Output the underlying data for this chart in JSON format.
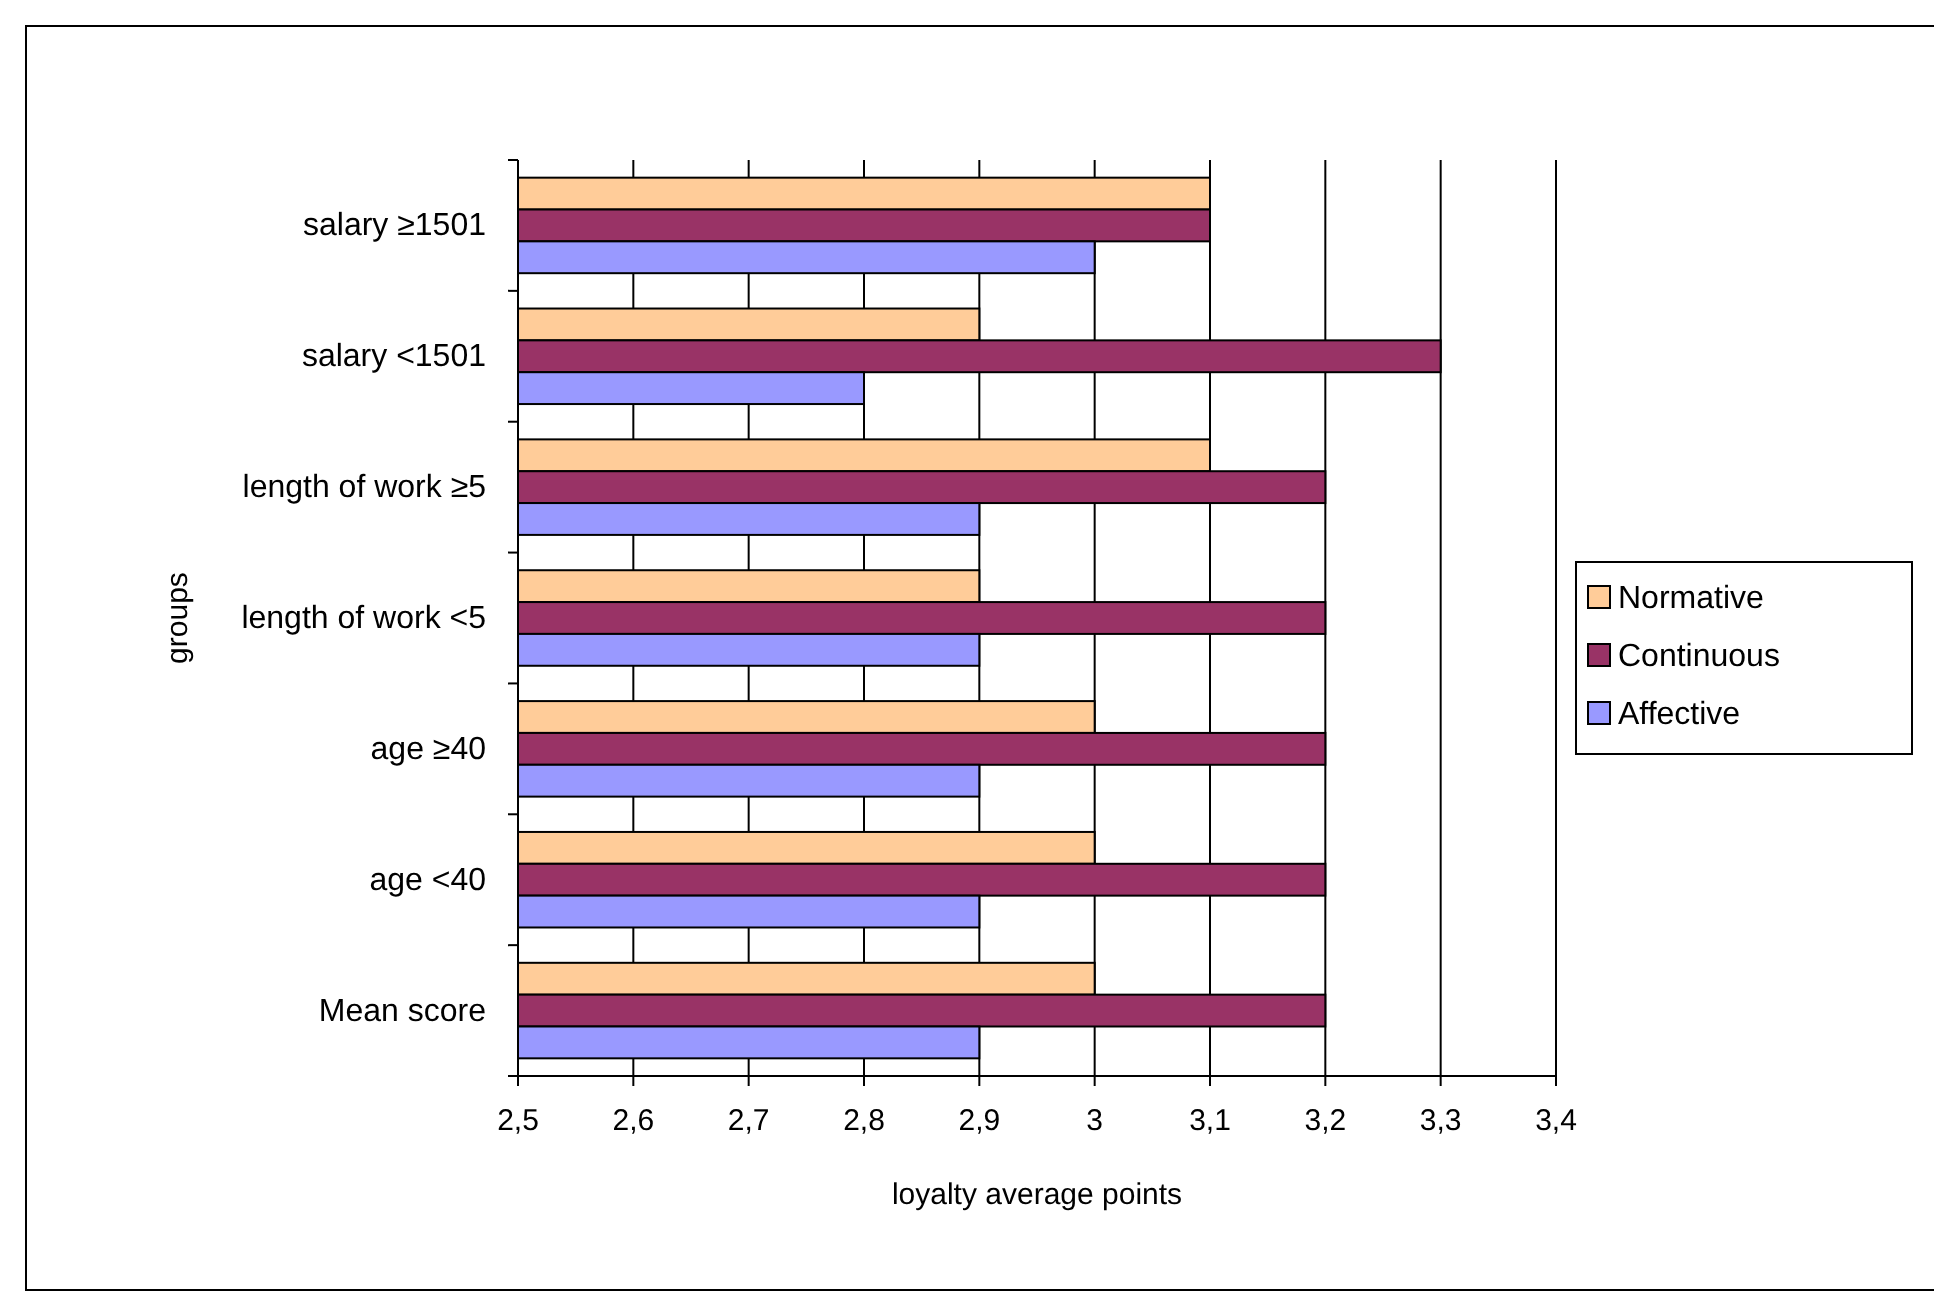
{
  "chart_data": {
    "type": "bar",
    "orientation": "horizontal",
    "xlabel": "loyalty average points",
    "ylabel": "groups",
    "categories": [
      "salary ≥1501",
      "salary <1501",
      "length of work ≥5",
      "length of work <5",
      "age ≥40",
      "age <40",
      "Mean score"
    ],
    "series": [
      {
        "name": "Normative",
        "color": "#ffcc99",
        "values": [
          3.1,
          2.9,
          3.1,
          2.9,
          3.0,
          3.0,
          3.0
        ]
      },
      {
        "name": "Continuous",
        "color": "#993366",
        "values": [
          3.1,
          3.3,
          3.2,
          3.2,
          3.2,
          3.2,
          3.2
        ]
      },
      {
        "name": "Affective",
        "color": "#9999ff",
        "values": [
          3.0,
          2.8,
          2.9,
          2.9,
          2.9,
          2.9,
          2.9
        ]
      }
    ],
    "xlim": [
      2.5,
      3.4
    ],
    "xticks": [
      {
        "value": 2.5,
        "label": "2,5"
      },
      {
        "value": 2.6,
        "label": "2,6"
      },
      {
        "value": 2.7,
        "label": "2,7"
      },
      {
        "value": 2.8,
        "label": "2,8"
      },
      {
        "value": 2.9,
        "label": "2,9"
      },
      3,
      {
        "value": 3.1,
        "label": "3,1"
      },
      {
        "value": 3.2,
        "label": "3,2"
      },
      {
        "value": 3.3,
        "label": "3,3"
      },
      {
        "value": 3.4,
        "label": "3,4"
      }
    ],
    "grid": "x",
    "legend": "right"
  }
}
